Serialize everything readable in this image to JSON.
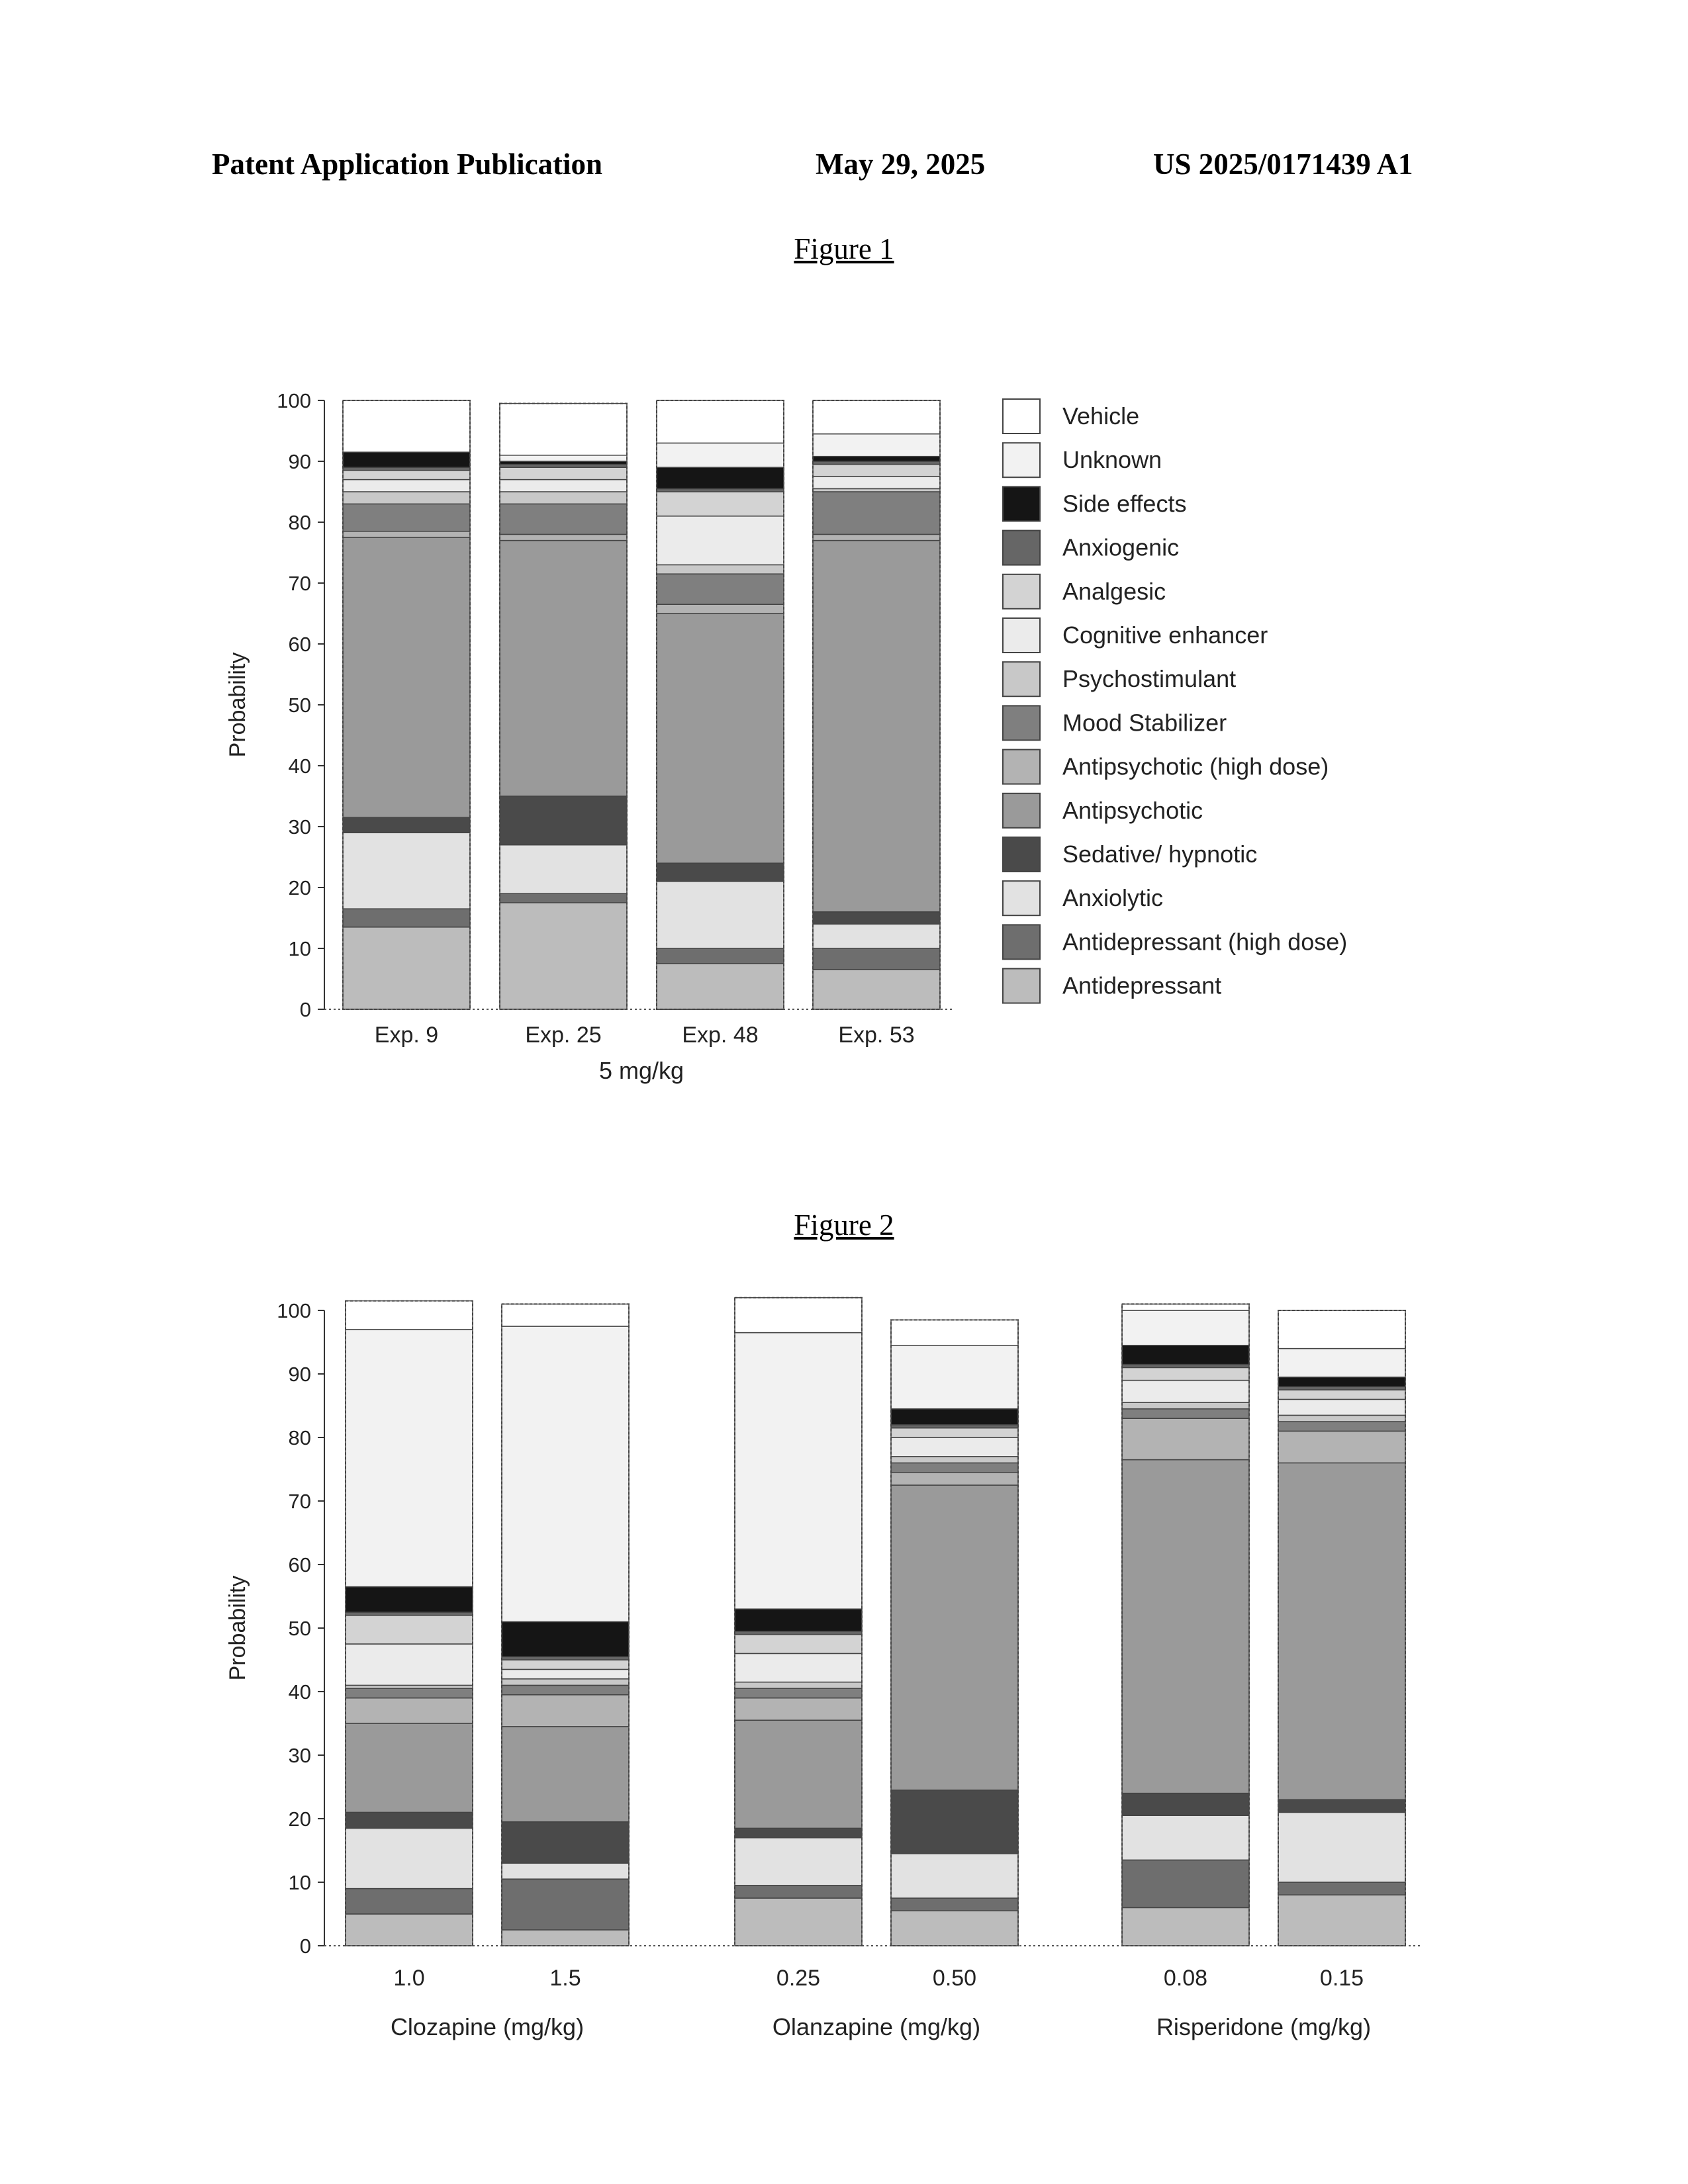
{
  "header": {
    "left": "Patent Application Publication",
    "center": "May 29, 2025",
    "right": "US 2025/0171439 A1"
  },
  "colors": {
    "Vehicle": "#ffffff",
    "Unknown": "#f2f2f2",
    "Side effects": "#151515",
    "Anxiogenic": "#666666",
    "Analgesic": "#d3d3d3",
    "Cognitive enhancer": "#ebebeb",
    "Psychostimulant": "#c8c8c8",
    "Mood Stabilizer": "#7f7f7f",
    "Antipsychotic (high dose)": "#b3b3b3",
    "Antipsychotic": "#9a9a9a",
    "Sedative/ hypnotic": "#4a4a4a",
    "Anxiolytic": "#e2e2e2",
    "Antidepressant (high dose)": "#6e6e6e",
    "Antidepressant": "#bcbcbc"
  },
  "chart_data": [
    {
      "type": "bar",
      "stacked": true,
      "title": "Figure 1",
      "ylabel": "Probability",
      "ylim": [
        0,
        100
      ],
      "yticks": [
        "0",
        "10",
        "20",
        "30",
        "40",
        "50",
        "60",
        "70",
        "80",
        "90",
        "100"
      ],
      "legend_position": "right",
      "legend_order": [
        "Vehicle",
        "Unknown",
        "Side effects",
        "Anxiogenic",
        "Analgesic",
        "Cognitive enhancer",
        "Psychostimulant",
        "Mood Stabilizer",
        "Antipsychotic (high dose)",
        "Antipsychotic",
        "Sedative/ hypnotic",
        "Anxiolytic",
        "Antidepressant (high dose)",
        "Antidepressant"
      ],
      "groups": [
        {
          "label": "5 mg/kg",
          "categories": [
            "Exp. 9",
            "Exp. 25",
            "Exp. 48",
            "Exp. 53"
          ]
        }
      ],
      "series": [
        {
          "name": "Antidepressant",
          "values": [
            13.5,
            17.5,
            7.5,
            6.5
          ]
        },
        {
          "name": "Antidepressant (high dose)",
          "values": [
            3,
            1.5,
            2.5,
            3.5
          ]
        },
        {
          "name": "Anxiolytic",
          "values": [
            12.5,
            8,
            11,
            4
          ]
        },
        {
          "name": "Sedative/ hypnotic",
          "values": [
            2.5,
            8,
            3,
            2
          ]
        },
        {
          "name": "Antipsychotic",
          "values": [
            46,
            42,
            41,
            61
          ]
        },
        {
          "name": "Antipsychotic (high dose)",
          "values": [
            1,
            1,
            1.5,
            1
          ]
        },
        {
          "name": "Mood Stabilizer",
          "values": [
            4.5,
            5,
            5,
            7
          ]
        },
        {
          "name": "Psychostimulant",
          "values": [
            2,
            2,
            1.5,
            0.5
          ]
        },
        {
          "name": "Cognitive enhancer",
          "values": [
            2,
            2,
            8,
            2
          ]
        },
        {
          "name": "Analgesic",
          "values": [
            1.5,
            2,
            4,
            2
          ]
        },
        {
          "name": "Anxiogenic",
          "values": [
            0.5,
            0.5,
            0.5,
            0.5
          ]
        },
        {
          "name": "Side effects",
          "values": [
            2.5,
            0.5,
            3.5,
            0.8
          ]
        },
        {
          "name": "Unknown",
          "values": [
            0,
            1,
            4,
            3.7
          ]
        },
        {
          "name": "Vehicle",
          "values": [
            8.5,
            8.5,
            7,
            5.5
          ]
        }
      ]
    },
    {
      "type": "bar",
      "stacked": true,
      "title": "Figure 2",
      "ylabel": "Probability",
      "ylim": [
        0,
        100
      ],
      "yticks": [
        "0",
        "10",
        "20",
        "30",
        "40",
        "50",
        "60",
        "70",
        "80",
        "90",
        "100"
      ],
      "groups": [
        {
          "label": "Clozapine (mg/kg)",
          "categories": [
            "1.0",
            "1.5"
          ]
        },
        {
          "label": "Olanzapine (mg/kg)",
          "categories": [
            "0.25",
            "0.50"
          ]
        },
        {
          "label": "Risperidone (mg/kg)",
          "categories": [
            "0.08",
            "0.15"
          ]
        }
      ],
      "series": [
        {
          "name": "Antidepressant",
          "values": [
            5,
            2.5,
            7.5,
            5.5,
            6,
            8
          ]
        },
        {
          "name": "Antidepressant (high dose)",
          "values": [
            4,
            8,
            2,
            2,
            7.5,
            2
          ]
        },
        {
          "name": "Anxiolytic",
          "values": [
            9.5,
            2.5,
            7.5,
            7,
            7,
            11
          ]
        },
        {
          "name": "Sedative/ hypnotic",
          "values": [
            2.5,
            6.5,
            1.5,
            10,
            3.5,
            2
          ]
        },
        {
          "name": "Antipsychotic",
          "values": [
            14,
            15,
            17,
            48,
            52.5,
            53
          ]
        },
        {
          "name": "Antipsychotic (high dose)",
          "values": [
            4,
            5,
            3.5,
            2,
            6.5,
            5
          ]
        },
        {
          "name": "Mood Stabilizer",
          "values": [
            1.5,
            1.5,
            1.5,
            1.5,
            1.5,
            1.5
          ]
        },
        {
          "name": "Psychostimulant",
          "values": [
            0.5,
            1,
            1,
            1,
            1,
            1
          ]
        },
        {
          "name": "Cognitive enhancer",
          "values": [
            6.5,
            1.5,
            4.5,
            3,
            3.5,
            2.5
          ]
        },
        {
          "name": "Analgesic",
          "values": [
            4.5,
            1.5,
            3,
            1.5,
            2,
            1.5
          ]
        },
        {
          "name": "Anxiogenic",
          "values": [
            0.5,
            0.5,
            0.5,
            0.5,
            0.5,
            0.5
          ]
        },
        {
          "name": "Side effects",
          "values": [
            4,
            5.5,
            3.5,
            2.5,
            3,
            1.5
          ]
        },
        {
          "name": "Unknown",
          "values": [
            40.5,
            46.5,
            43.5,
            10,
            5.5,
            4.5
          ]
        },
        {
          "name": "Vehicle",
          "values": [
            4.5,
            3.5,
            5.5,
            4,
            1,
            6
          ]
        }
      ]
    }
  ]
}
